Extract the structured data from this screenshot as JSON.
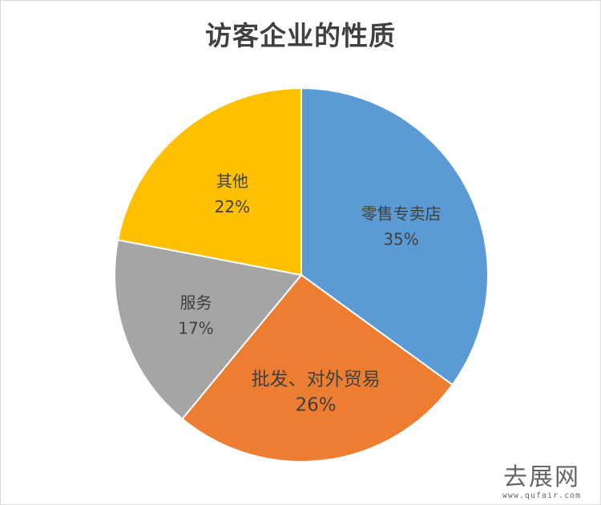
{
  "chart_data": {
    "type": "pie",
    "title": "访客企业的性质",
    "slices": [
      {
        "label": "零售专卖店",
        "value": 35,
        "value_label": "35%",
        "color": "#5B9BD5"
      },
      {
        "label": "批发、对外贸易",
        "value": 26,
        "value_label": "26%",
        "color": "#ED7D31"
      },
      {
        "label": "服务",
        "value": 17,
        "value_label": "17%",
        "color": "#A5A5A5"
      },
      {
        "label": "其他",
        "value": 22,
        "value_label": "22%",
        "color": "#FFC000"
      }
    ],
    "start": "12 o'clock",
    "direction": "clockwise"
  },
  "watermark": {
    "text": "去展网",
    "url": "www.qufair.com"
  }
}
